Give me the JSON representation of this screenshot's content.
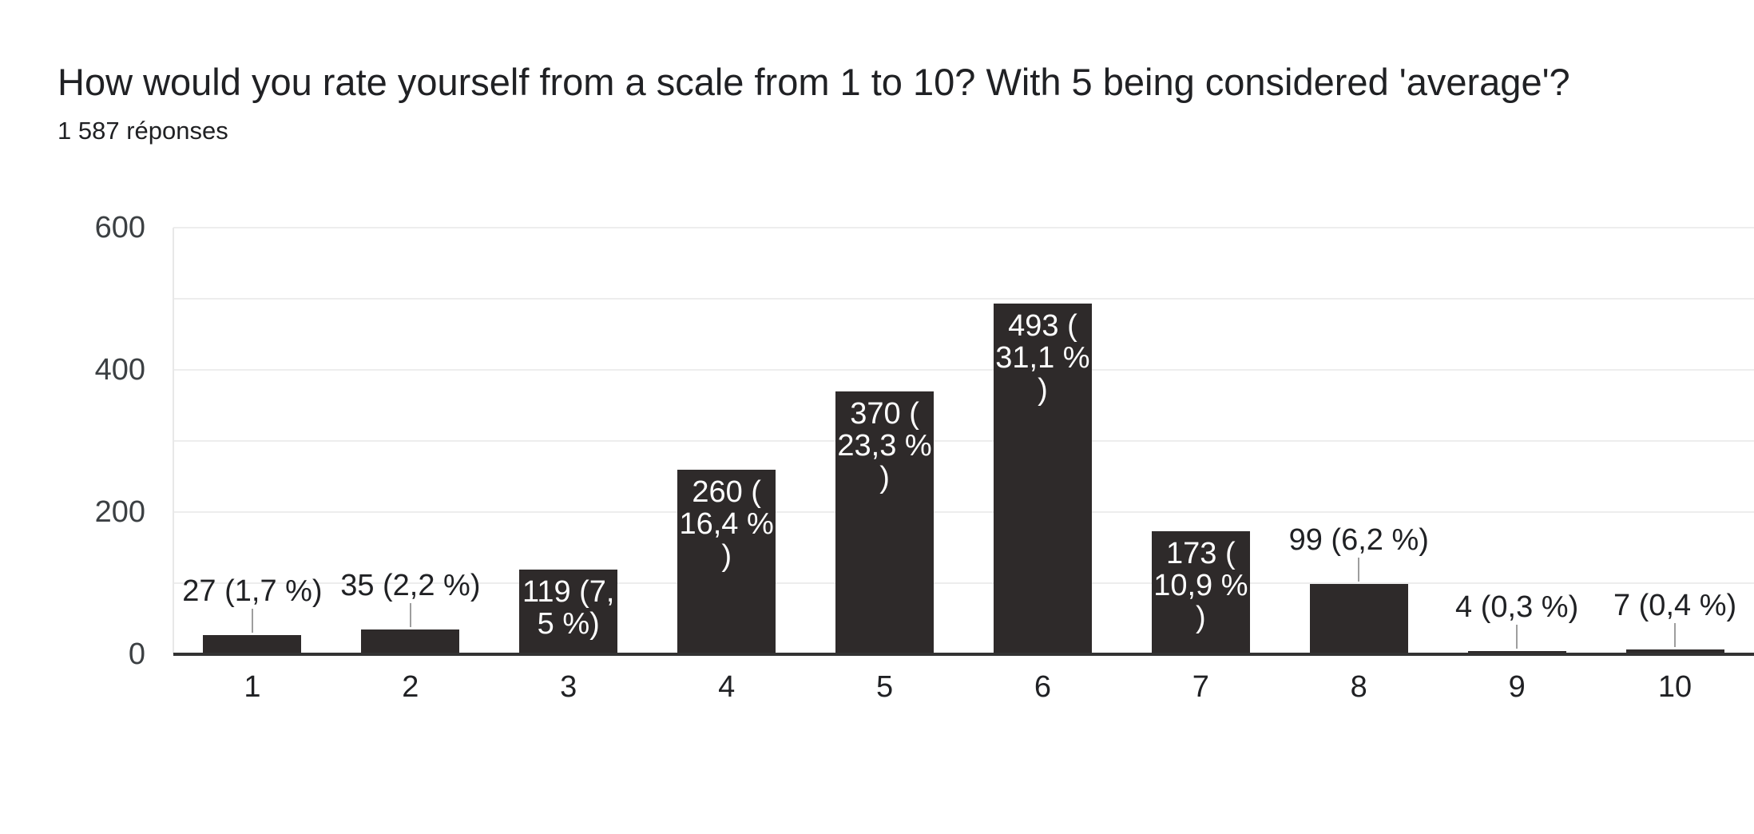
{
  "header": {
    "title": "How would you rate yourself from a scale from 1 to 10? With 5 being considered 'average'?",
    "subtitle": "1 587 réponses"
  },
  "chart_data": {
    "type": "bar",
    "title": "How would you rate yourself from a scale from 1 to 10? With 5 being considered 'average'?",
    "subtitle": "1 587 réponses",
    "categories": [
      "1",
      "2",
      "3",
      "4",
      "5",
      "6",
      "7",
      "8",
      "9",
      "10"
    ],
    "values": [
      27,
      35,
      119,
      260,
      370,
      493,
      173,
      99,
      4,
      7
    ],
    "bar_labels": [
      "27 (1,7 %)",
      "35 (2,2 %)",
      "119 (7,5 %)",
      "260 (16,4 %)",
      "370 (23,3 %)",
      "493 (31,1 %)",
      "173 (10,9 %)",
      "99 (6,2 %)",
      "4 (0,3 %)",
      "7 (0,4 %)"
    ],
    "label_placement": [
      "outside",
      "outside",
      "inside",
      "inside",
      "inside",
      "inside",
      "inside",
      "outside",
      "outside",
      "outside"
    ],
    "label_lines_inside": [
      null,
      null,
      [
        "119 (7,",
        "5 %)"
      ],
      [
        "260 (",
        "16,4 %",
        ")"
      ],
      [
        "370 (",
        "23,3 %",
        ")"
      ],
      [
        "493 (",
        "31,1 %",
        ")"
      ],
      [
        "173 (",
        "10,9 %",
        ")"
      ],
      null,
      null,
      null
    ],
    "xlabel": "",
    "ylabel": "",
    "ylim": [
      0,
      600
    ],
    "ytick_values": [
      0,
      200,
      400,
      600
    ],
    "ytick_labels": [
      "0",
      "200",
      "400",
      "600"
    ],
    "gridline_values": [
      100,
      200,
      300,
      400,
      500,
      600
    ],
    "grid": true,
    "legend": "none",
    "colors": {
      "bar": "#2e2a2a",
      "bar_label_inside": "#ffffff",
      "bar_label_outside": "#202124",
      "connector": "#9e9e9e",
      "gridline": "#ededed",
      "axis_baseline": "#333333",
      "axis_side_line": "#e8e8e8",
      "ytick_text": "#3c4043",
      "xtick_text": "#202124",
      "title_text": "#202124",
      "background": "#ffffff"
    }
  }
}
